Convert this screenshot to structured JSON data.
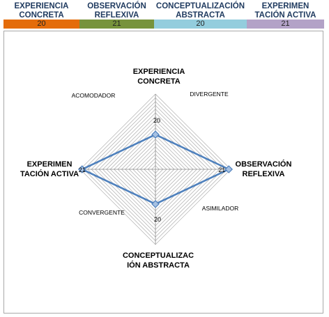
{
  "header": {
    "columns": [
      {
        "title_lines": [
          "EXPERIENCIA",
          "CONCRETA"
        ],
        "score": "20",
        "color": "#e46c0a"
      },
      {
        "title_lines": [
          "OBSERVACIÓN",
          "REFLEXIVA"
        ],
        "score": "21",
        "color": "#77933c"
      },
      {
        "title_lines": [
          "CONCEPTUALIZACIÓN",
          "ABSTRACTA"
        ],
        "score": "20",
        "color": "#93cddd"
      },
      {
        "title_lines": [
          "EXPERIMEN",
          "TACIÓN ACTIVA"
        ],
        "score": "21",
        "color": "#b3a2c7"
      }
    ]
  },
  "chart_data": {
    "type": "radar",
    "axes": [
      {
        "label_lines": [
          "EXPERIENCIA",
          "CONCRETA"
        ],
        "value": 20
      },
      {
        "label_lines": [
          "OBSERVACIÓN",
          "REFLEXIVA"
        ],
        "value": 21
      },
      {
        "label_lines": [
          "CONCEPTUALIZAC",
          "IÓN ABSTRACTA"
        ],
        "value": 20
      },
      {
        "label_lines": [
          "EXPERIMEN",
          "TACIÓN ACTIVA"
        ],
        "value": 21
      }
    ],
    "data_labels": [
      "20",
      "21",
      "20",
      "21"
    ],
    "range": [
      19.1,
      21.05
    ],
    "grid_rings": 20,
    "quadrant_labels": [
      "DIVERGENTE",
      "ASIMILADOR",
      "CONVERGENTE",
      "ACOMODADOR"
    ],
    "series_color": "#4f81bd",
    "grid_color": "#a0a0a0"
  }
}
